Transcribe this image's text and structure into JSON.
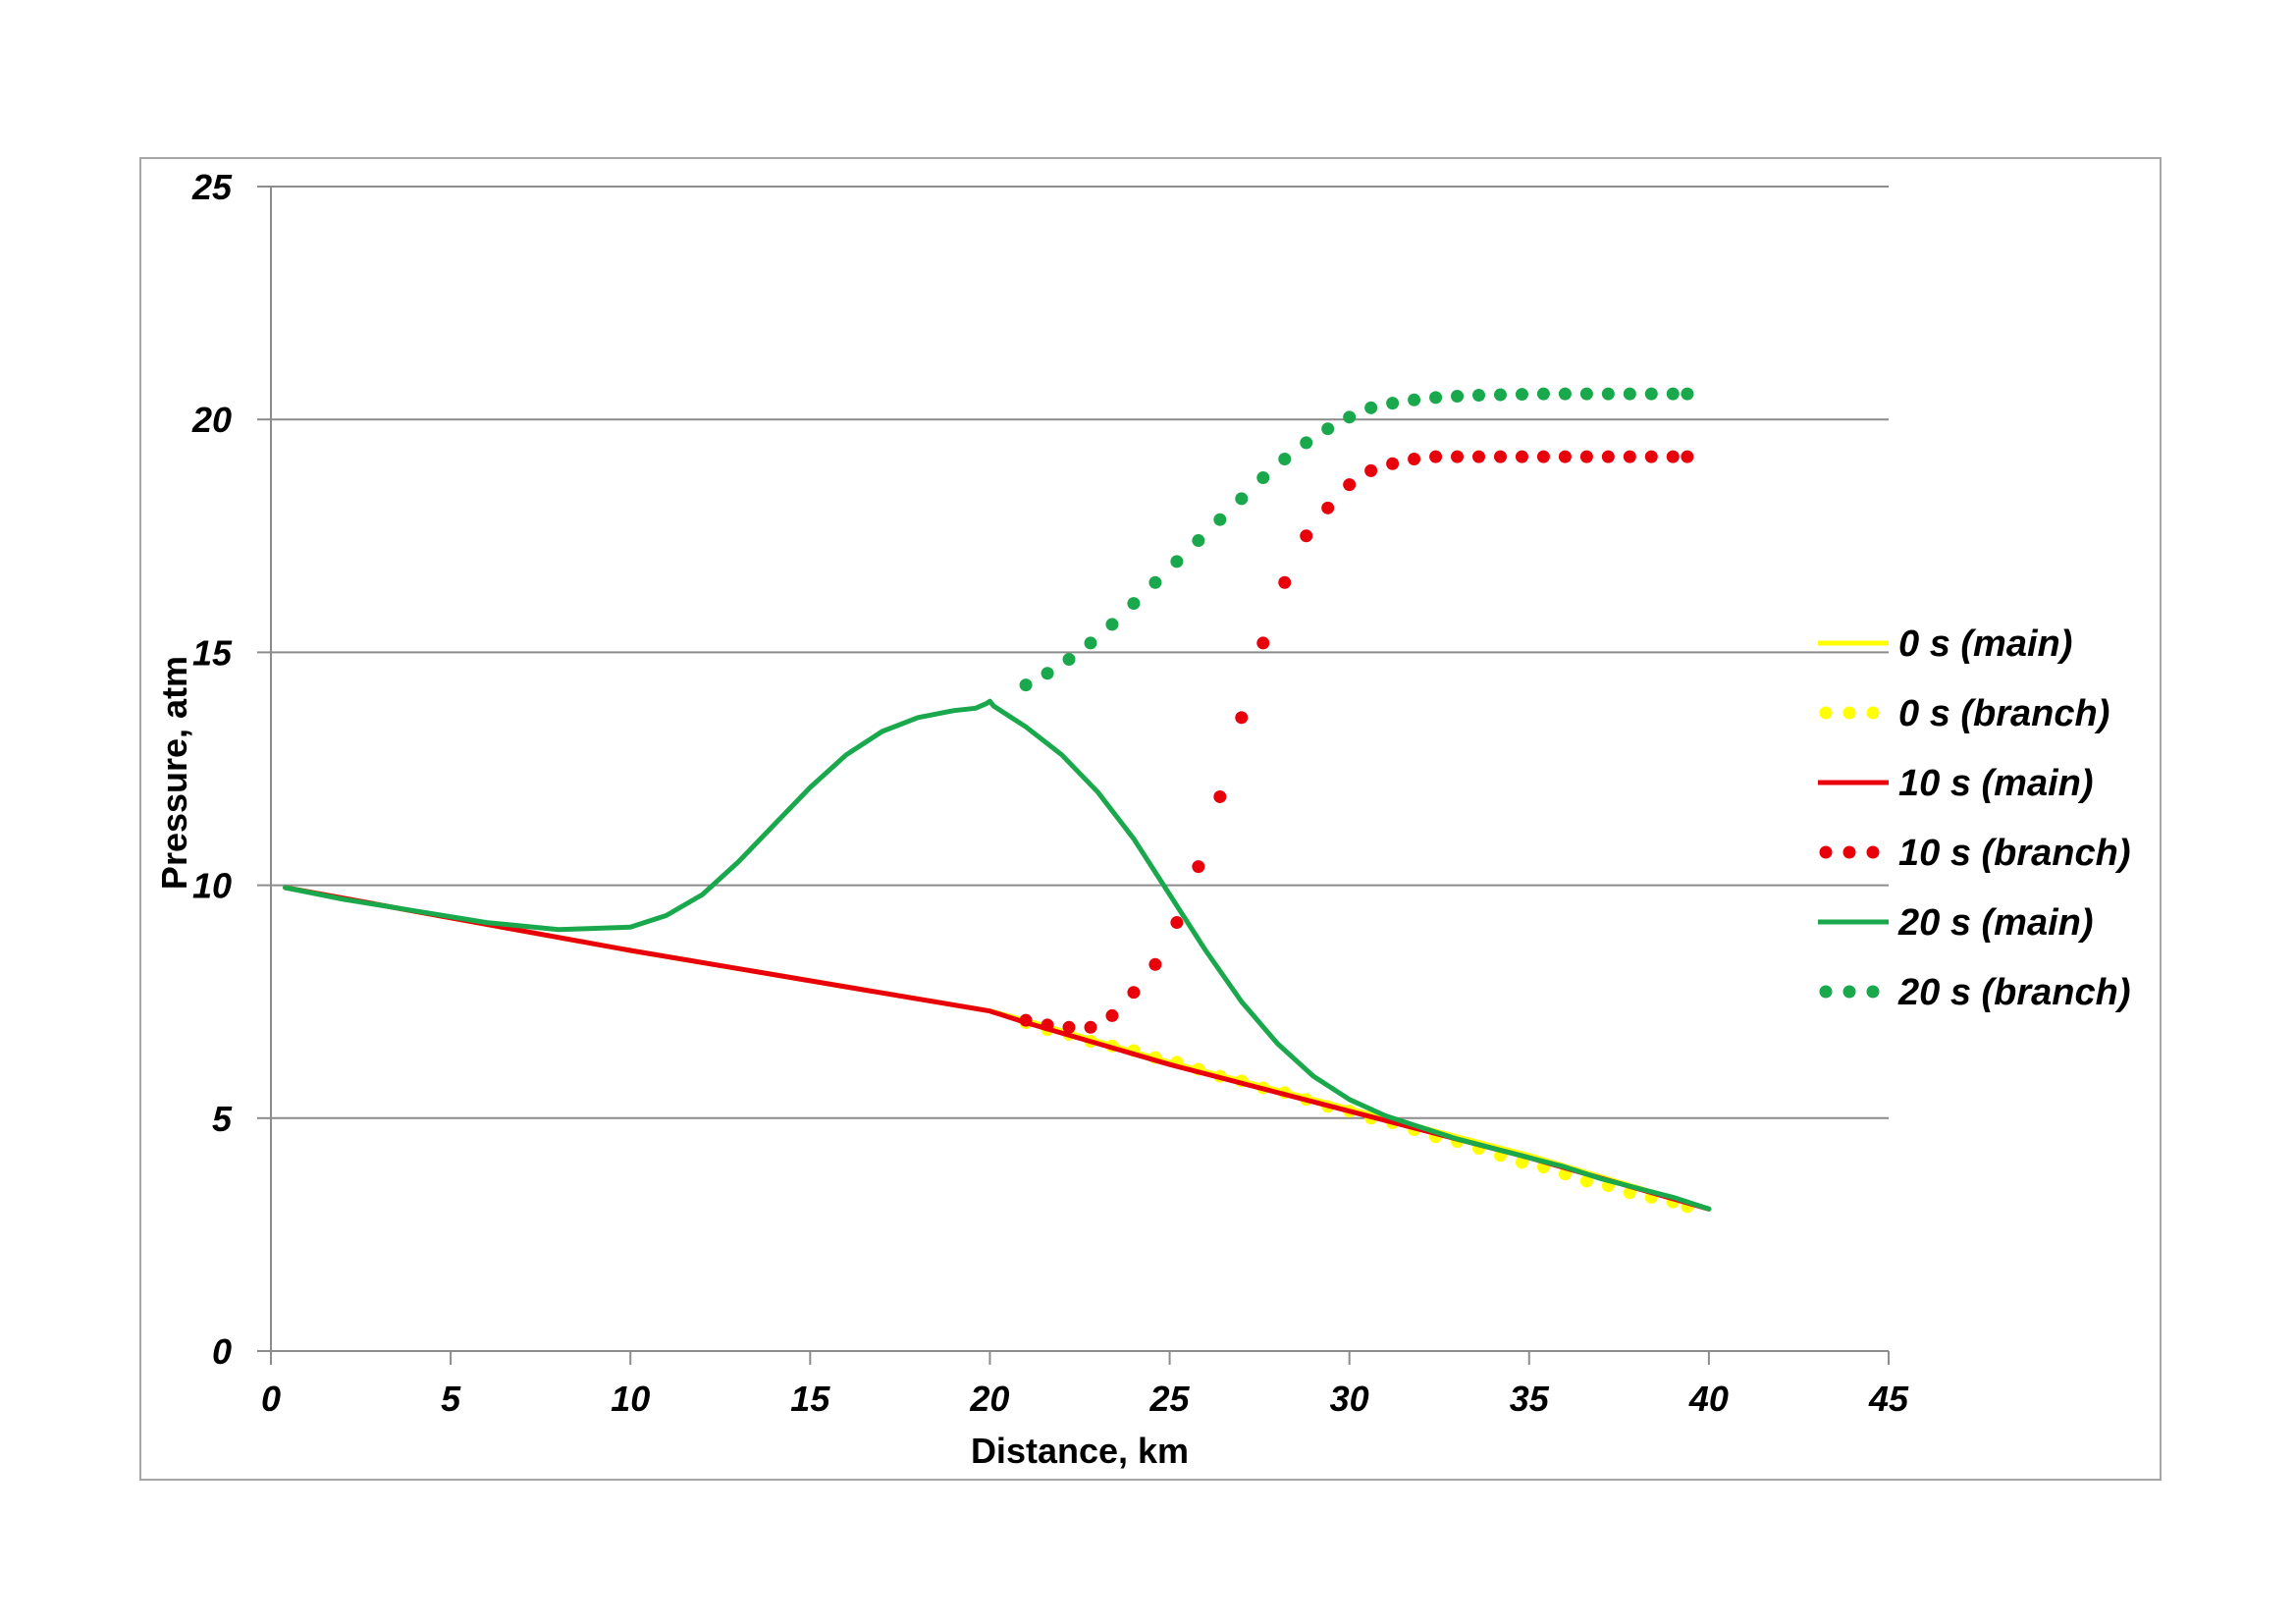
{
  "chart_data": {
    "type": "line",
    "title": "",
    "xlabel": "Distance, km",
    "ylabel": "Pressure, atm",
    "xlim": [
      0,
      45
    ],
    "ylim": [
      0,
      25
    ],
    "xticks": [
      "0",
      "5",
      "10",
      "15",
      "20",
      "25",
      "30",
      "35",
      "40",
      "45"
    ],
    "yticks": [
      "0",
      "5",
      "10",
      "15",
      "20",
      "25"
    ],
    "grid": "horizontal",
    "legend_position": "right",
    "series": [
      {
        "name": "0 s (main)",
        "color": "#FFFF00",
        "style": "solid",
        "x": [
          0.4,
          5,
          10,
          15,
          20,
          21,
          25,
          30,
          35,
          40
        ],
        "y": [
          9.95,
          9.3,
          8.6,
          7.95,
          7.3,
          7.1,
          6.2,
          5.2,
          4.2,
          3.05
        ]
      },
      {
        "name": "0 s (branch)",
        "color": "#FFFF00",
        "style": "dotted",
        "x": [
          21,
          21.6,
          22.2,
          22.8,
          23.4,
          24,
          24.6,
          25.2,
          25.8,
          26.4,
          27,
          27.6,
          28.2,
          28.8,
          29.4,
          30,
          30.6,
          31.2,
          31.8,
          32.4,
          33,
          33.6,
          34.2,
          34.8,
          35.4,
          36,
          36.6,
          37.2,
          37.8,
          38.4,
          39,
          39.4
        ],
        "y": [
          7.05,
          6.9,
          6.8,
          6.65,
          6.55,
          6.45,
          6.3,
          6.2,
          6.05,
          5.9,
          5.8,
          5.65,
          5.55,
          5.4,
          5.25,
          5.15,
          5.0,
          4.9,
          4.75,
          4.6,
          4.5,
          4.35,
          4.2,
          4.05,
          3.95,
          3.8,
          3.65,
          3.55,
          3.4,
          3.3,
          3.2,
          3.1
        ]
      },
      {
        "name": "10 s (main)",
        "color": "#E8000B",
        "style": "solid",
        "x": [
          0.4,
          5,
          10,
          15,
          20,
          21,
          25,
          30,
          35,
          40
        ],
        "y": [
          9.95,
          9.3,
          8.6,
          7.95,
          7.3,
          7.05,
          6.15,
          5.15,
          4.15,
          3.05
        ]
      },
      {
        "name": "10 s (branch)",
        "color": "#E8000B",
        "style": "dotted",
        "x": [
          21,
          21.6,
          22.2,
          22.8,
          23.4,
          24,
          24.6,
          25.2,
          25.8,
          26.4,
          27,
          27.6,
          28.2,
          28.8,
          29.4,
          30,
          30.6,
          31.2,
          31.8,
          32.4,
          33,
          33.6,
          34.2,
          34.8,
          35.4,
          36,
          36.6,
          37.2,
          37.8,
          38.4,
          39,
          39.4
        ],
        "y": [
          7.1,
          7.0,
          6.95,
          6.95,
          7.2,
          7.7,
          8.3,
          9.2,
          10.4,
          11.9,
          13.6,
          15.2,
          16.5,
          17.5,
          18.1,
          18.6,
          18.9,
          19.05,
          19.15,
          19.2,
          19.2,
          19.2,
          19.2,
          19.2,
          19.2,
          19.2,
          19.2,
          19.2,
          19.2,
          19.2,
          19.2,
          19.2
        ]
      },
      {
        "name": "20 s (main)",
        "color": "#1AA84C",
        "style": "solid",
        "x": [
          0.4,
          2,
          4,
          6,
          8,
          10,
          11,
          12,
          13,
          14,
          15,
          16,
          17,
          18,
          19,
          19.6,
          19.9,
          20.0,
          20.1,
          20.4,
          21,
          22,
          23,
          24,
          25,
          26,
          27,
          28,
          29,
          30,
          31,
          32,
          33,
          34,
          35,
          36,
          37,
          38,
          39,
          40
        ],
        "y": [
          9.95,
          9.7,
          9.45,
          9.2,
          9.05,
          9.1,
          9.35,
          9.8,
          10.5,
          11.3,
          12.1,
          12.8,
          13.3,
          13.6,
          13.75,
          13.8,
          13.9,
          13.95,
          13.85,
          13.7,
          13.4,
          12.8,
          12.0,
          11.0,
          9.8,
          8.6,
          7.5,
          6.6,
          5.9,
          5.4,
          5.05,
          4.8,
          4.55,
          4.35,
          4.15,
          3.95,
          3.7,
          3.5,
          3.3,
          3.05
        ]
      },
      {
        "name": "20 s (branch)",
        "color": "#1AA84C",
        "style": "dotted",
        "x": [
          21,
          21.6,
          22.2,
          22.8,
          23.4,
          24,
          24.6,
          25.2,
          25.8,
          26.4,
          27,
          27.6,
          28.2,
          28.8,
          29.4,
          30,
          30.6,
          31.2,
          31.8,
          32.4,
          33,
          33.6,
          34.2,
          34.8,
          35.4,
          36,
          36.6,
          37.2,
          37.8,
          38.4,
          39,
          39.4
        ],
        "y": [
          14.3,
          14.55,
          14.85,
          15.2,
          15.6,
          16.05,
          16.5,
          16.95,
          17.4,
          17.85,
          18.3,
          18.75,
          19.15,
          19.5,
          19.8,
          20.05,
          20.25,
          20.35,
          20.42,
          20.47,
          20.5,
          20.52,
          20.53,
          20.54,
          20.55,
          20.55,
          20.55,
          20.55,
          20.55,
          20.55,
          20.55,
          20.55
        ]
      }
    ]
  }
}
